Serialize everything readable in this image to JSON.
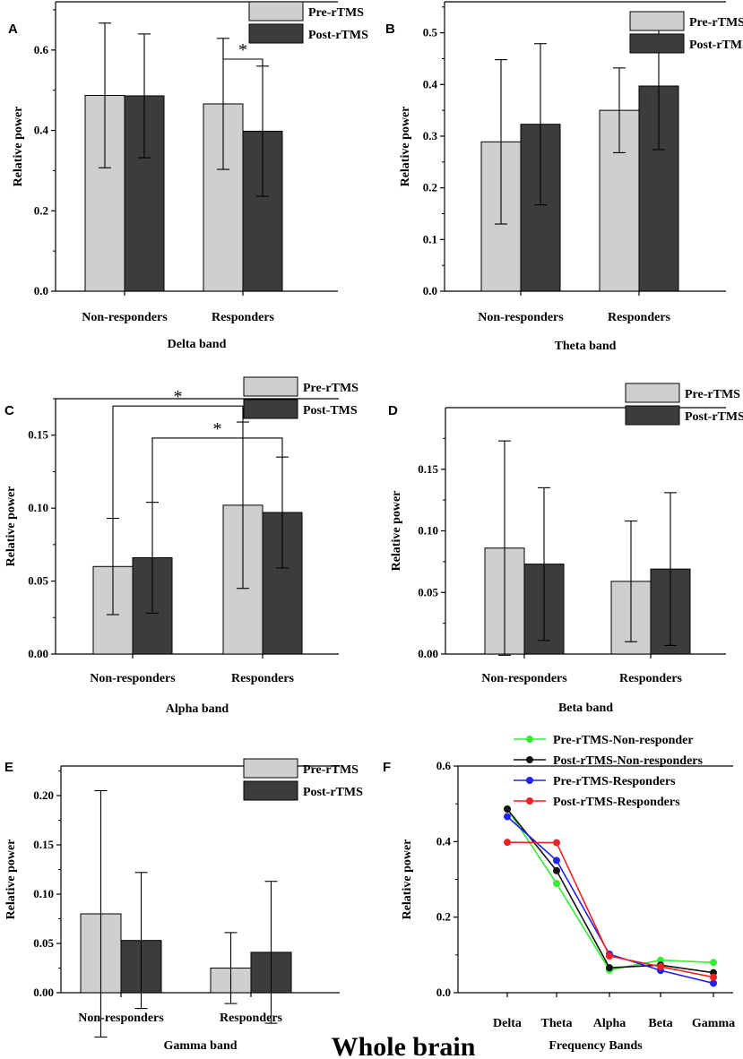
{
  "figure_title": "Whole brain",
  "chart_data": [
    {
      "panel": "A",
      "type": "bar",
      "title": "",
      "xlabel": "Delta band",
      "ylabel": "Relative power",
      "categories": [
        "Non-responders",
        "Responders"
      ],
      "series": [
        {
          "name": "Pre-rTMS",
          "color": "#cfcfcf",
          "values": [
            0.487,
            0.466
          ],
          "errors": [
            0.18,
            0.163
          ]
        },
        {
          "name": "Post-rTMS",
          "color": "#3c3c3c",
          "values": [
            0.486,
            0.398
          ],
          "errors": [
            0.154,
            0.162
          ]
        }
      ],
      "ylim": [
        0,
        0.72
      ],
      "yticks": [
        "0.0",
        "0.2",
        "0.4",
        "0.6"
      ],
      "significance": [
        {
          "label": "*",
          "type": "within",
          "category": 1
        }
      ]
    },
    {
      "panel": "B",
      "type": "bar",
      "title": "",
      "xlabel": "Theta band",
      "ylabel": "Relative power",
      "categories": [
        "Non-responders",
        "Responders"
      ],
      "series": [
        {
          "name": "Pre-rTMS",
          "color": "#cfcfcf",
          "values": [
            0.289,
            0.35
          ],
          "errors": [
            0.159,
            0.082
          ]
        },
        {
          "name": "Post-rTMS",
          "color": "#3c3c3c",
          "values": [
            0.323,
            0.397
          ],
          "errors": [
            0.156,
            0.123
          ]
        }
      ],
      "ylim": [
        0,
        0.56
      ],
      "yticks": [
        "0.0",
        "0.1",
        "0.2",
        "0.3",
        "0.4",
        "0.5"
      ],
      "significance": []
    },
    {
      "panel": "C",
      "type": "bar",
      "title": "",
      "xlabel": "Alpha band",
      "ylabel": "Relative power",
      "categories": [
        "Non-responders",
        "Responders"
      ],
      "series": [
        {
          "name": "Pre-rTMS",
          "color": "#cfcfcf",
          "values": [
            0.06,
            0.102
          ],
          "errors": [
            0.033,
            0.057
          ]
        },
        {
          "name": "Post-TMS",
          "color": "#3c3c3c",
          "values": [
            0.066,
            0.097
          ],
          "errors": [
            0.038,
            0.038
          ]
        }
      ],
      "ylim": [
        0,
        0.175
      ],
      "yticks": [
        "0.00",
        "0.05",
        "0.10",
        "0.15"
      ],
      "significance": [
        {
          "label": "*",
          "type": "between",
          "series": 0,
          "level": 0.17
        },
        {
          "label": "*",
          "type": "between",
          "series": 1,
          "level": 0.148
        }
      ]
    },
    {
      "panel": "D",
      "type": "bar",
      "title": "",
      "xlabel": "Beta band",
      "ylabel": "Relative power",
      "categories": [
        "Non-responders",
        "Responders"
      ],
      "series": [
        {
          "name": "Pre-rTMS",
          "color": "#cfcfcf",
          "values": [
            0.086,
            0.059
          ],
          "errors": [
            0.087,
            0.049
          ]
        },
        {
          "name": "Post-rTMS",
          "color": "#3c3c3c",
          "values": [
            0.073,
            0.069
          ],
          "errors": [
            0.062,
            0.062
          ]
        }
      ],
      "ylim": [
        0,
        0.2
      ],
      "yticks": [
        "0.00",
        "0.05",
        "0.10",
        "0.15"
      ],
      "significance": []
    },
    {
      "panel": "E",
      "type": "bar",
      "title": "",
      "xlabel": "Gamma band",
      "ylabel": "Relative power",
      "categories": [
        "Non-responders",
        "Responders"
      ],
      "series": [
        {
          "name": "Pre-rTMS",
          "color": "#cfcfcf",
          "values": [
            0.08,
            0.025
          ],
          "errors": [
            0.125,
            0.036
          ]
        },
        {
          "name": "Post-rTMS",
          "color": "#3c3c3c",
          "values": [
            0.053,
            0.041
          ],
          "errors": [
            0.069,
            0.072
          ]
        }
      ],
      "ylim": [
        0,
        0.23
      ],
      "yticks": [
        "0.00",
        "0.05",
        "0.10",
        "0.15",
        "0.20"
      ],
      "significance": []
    },
    {
      "panel": "F",
      "type": "line",
      "title": "",
      "xlabel": "Frequency Bands",
      "ylabel": "Relative power",
      "categories": [
        "Delta",
        "Theta",
        "Alpha",
        "Beta",
        "Gamma"
      ],
      "series": [
        {
          "name": "Pre-rTMS-Non-responder",
          "color": "#33ee33",
          "values": [
            0.487,
            0.289,
            0.06,
            0.086,
            0.08
          ]
        },
        {
          "name": "Post-rTMS-Non-responders",
          "color": "#111111",
          "values": [
            0.486,
            0.323,
            0.066,
            0.073,
            0.053
          ]
        },
        {
          "name": "Pre-rTMS-Responders",
          "color": "#2222ee",
          "values": [
            0.466,
            0.35,
            0.102,
            0.059,
            0.025
          ]
        },
        {
          "name": "Post-rTMS-Responders",
          "color": "#ee2222",
          "values": [
            0.398,
            0.397,
            0.097,
            0.069,
            0.041
          ]
        }
      ],
      "ylim": [
        0,
        0.6
      ],
      "yticks": [
        "0.0",
        "0.2",
        "0.4",
        "0.6"
      ]
    }
  ]
}
